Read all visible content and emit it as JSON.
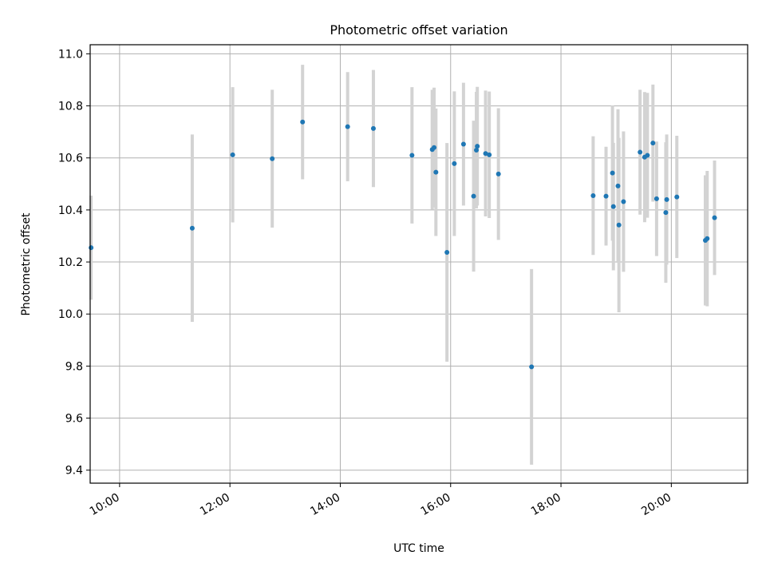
{
  "chart_data": {
    "type": "scatter",
    "title": "Photometric offset variation",
    "xlabel": "UTC time",
    "ylabel": "Photometric offset",
    "xlim": [
      "09:28",
      "21:23"
    ],
    "ylim": [
      9.35,
      11.035
    ],
    "x_ticks": [
      "10:00",
      "12:00",
      "14:00",
      "16:00",
      "18:00",
      "20:00"
    ],
    "y_ticks": [
      "9.4",
      "9.6",
      "9.8",
      "10.0",
      "10.2",
      "10.4",
      "10.6",
      "10.8",
      "11.0"
    ],
    "grid": true,
    "marker_color": "#1f77b4",
    "errorbar_color": "#d3d3d3",
    "points": [
      {
        "x": "09:29",
        "y": 10.255,
        "err": 0.2
      },
      {
        "x": "11:19",
        "y": 10.33,
        "err": 0.36
      },
      {
        "x": "12:03",
        "y": 10.612,
        "err": 0.26
      },
      {
        "x": "12:46",
        "y": 10.597,
        "err": 0.265
      },
      {
        "x": "13:19",
        "y": 10.738,
        "err": 0.22
      },
      {
        "x": "14:08",
        "y": 10.72,
        "err": 0.21
      },
      {
        "x": "14:36",
        "y": 10.713,
        "err": 0.225
      },
      {
        "x": "15:18",
        "y": 10.61,
        "err": 0.262
      },
      {
        "x": "15:40",
        "y": 10.632,
        "err": 0.23
      },
      {
        "x": "15:42",
        "y": 10.64,
        "err": 0.23
      },
      {
        "x": "15:44",
        "y": 10.545,
        "err": 0.245
      },
      {
        "x": "15:56",
        "y": 10.237,
        "err": 0.42
      },
      {
        "x": "16:04",
        "y": 10.578,
        "err": 0.278
      },
      {
        "x": "16:14",
        "y": 10.653,
        "err": 0.236
      },
      {
        "x": "16:25",
        "y": 10.453,
        "err": 0.29
      },
      {
        "x": "16:28",
        "y": 10.63,
        "err": 0.224
      },
      {
        "x": "16:29",
        "y": 10.645,
        "err": 0.228
      },
      {
        "x": "16:38",
        "y": 10.617,
        "err": 0.242
      },
      {
        "x": "16:42",
        "y": 10.612,
        "err": 0.243
      },
      {
        "x": "16:52",
        "y": 10.538,
        "err": 0.253
      },
      {
        "x": "17:28",
        "y": 9.797,
        "err": 0.376
      },
      {
        "x": "18:35",
        "y": 10.455,
        "err": 0.228
      },
      {
        "x": "18:49",
        "y": 10.453,
        "err": 0.19
      },
      {
        "x": "18:56",
        "y": 10.542,
        "err": 0.26
      },
      {
        "x": "18:57",
        "y": 10.413,
        "err": 0.245
      },
      {
        "x": "19:02",
        "y": 10.492,
        "err": 0.295
      },
      {
        "x": "19:03",
        "y": 10.342,
        "err": 0.335
      },
      {
        "x": "19:08",
        "y": 10.432,
        "err": 0.27
      },
      {
        "x": "19:26",
        "y": 10.622,
        "err": 0.24
      },
      {
        "x": "19:31",
        "y": 10.603,
        "err": 0.25
      },
      {
        "x": "19:34",
        "y": 10.61,
        "err": 0.24
      },
      {
        "x": "19:40",
        "y": 10.657,
        "err": 0.225
      },
      {
        "x": "19:44",
        "y": 10.443,
        "err": 0.22
      },
      {
        "x": "19:54",
        "y": 10.39,
        "err": 0.27
      },
      {
        "x": "19:55",
        "y": 10.44,
        "err": 0.25
      },
      {
        "x": "20:06",
        "y": 10.45,
        "err": 0.235
      },
      {
        "x": "20:37",
        "y": 10.283,
        "err": 0.25
      },
      {
        "x": "20:39",
        "y": 10.29,
        "err": 0.26
      },
      {
        "x": "20:47",
        "y": 10.37,
        "err": 0.22
      }
    ]
  }
}
